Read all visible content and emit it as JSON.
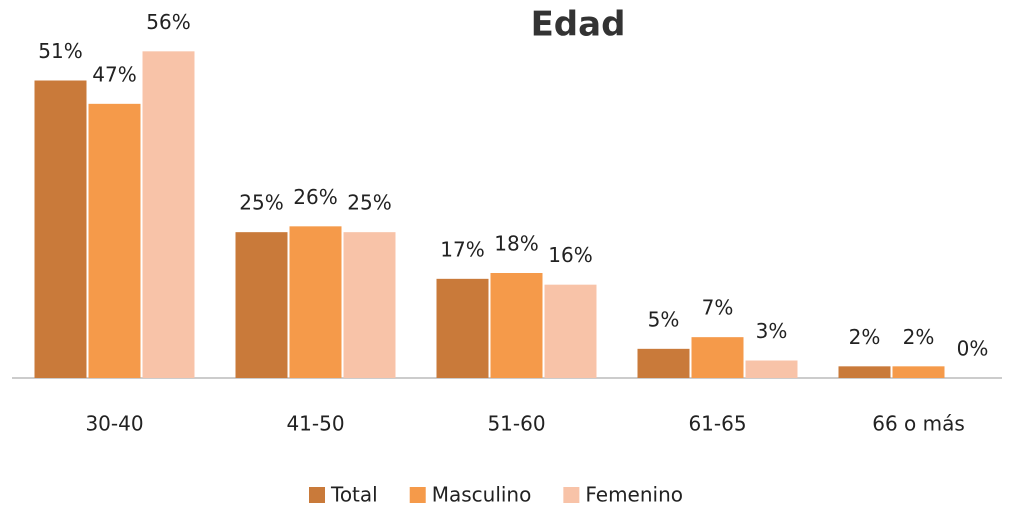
{
  "chart_data": {
    "type": "bar",
    "title": "Edad",
    "categories": [
      "30-40",
      "41-50",
      "51-60",
      "61-65",
      "66 o más"
    ],
    "series": [
      {
        "name": "Total",
        "color": "#c97a3a",
        "values": [
          51,
          25,
          17,
          5,
          2
        ],
        "value_labels": [
          "51%",
          "25%",
          "17%",
          "5%",
          "2%"
        ]
      },
      {
        "name": "Masculino",
        "color": "#f59a4a",
        "values": [
          47,
          26,
          18,
          7,
          2
        ],
        "value_labels": [
          "47%",
          "26%",
          "18%",
          "7%",
          "2%"
        ]
      },
      {
        "name": "Femenino",
        "color": "#f8c3a8",
        "values": [
          56,
          25,
          16,
          3,
          0
        ],
        "value_labels": [
          "56%",
          "25%",
          "16%",
          "3%",
          "0%"
        ]
      }
    ],
    "ylim": [
      0,
      60
    ],
    "grid": false,
    "legend": "bottom"
  }
}
